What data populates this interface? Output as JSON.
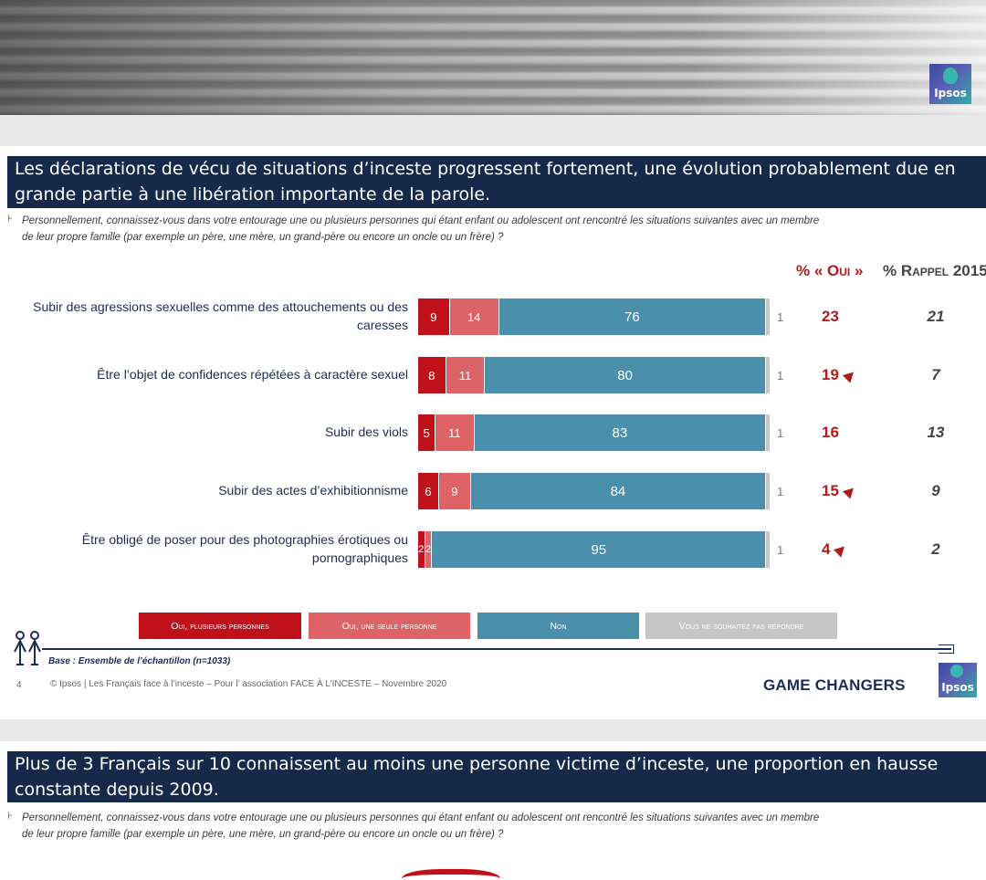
{
  "slide1": {
    "title": "Les déclarations de vécu de situations d’inceste progressent fortement, une évolution probablement due en grande partie à une libération importante de la parole.",
    "question_line1": "Personnellement, connaissez-vous dans votre entourage une ou plusieurs personnes qui étant enfant ou adolescent ont rencontré les situations suivantes avec un membre",
    "question_line2": "de leur propre famille (par exemple un père, une mère, un grand-père ou encore un oncle ou un frère) ?",
    "col_oui": "% « Oui »",
    "col_rappel": "% Rappel 2015",
    "base": "Base : Ensemble de l’échantillon (n=1033)",
    "footer": "© Ipsos | Les Français face à l’inceste – Pour l’ association FACE À L’INCESTE – Novembre 2020",
    "page_number": "4",
    "brand": "GAME CHANGERS",
    "logo_text": "Ipsos"
  },
  "chart_data": {
    "type": "bar",
    "orientation": "horizontal-stacked-100",
    "categories": [
      "Subir des agressions sexuelles comme des attouchements ou des caresses",
      "Être l’objet de confidences répétées à caractère sexuel",
      "Subir des viols",
      "Subir des actes d’exhibitionnisme",
      "Être obligé de poser pour des photographies érotiques ou pornographiques"
    ],
    "label_lines": [
      [
        "Subir des agressions sexuelles comme des attouchements ou des",
        "caresses"
      ],
      [
        "Être l’objet de confidences répétées à caractère sexuel"
      ],
      [
        "Subir des viols"
      ],
      [
        "Subir des actes d’exhibitionnisme"
      ],
      [
        "Être obligé de poser pour des photographies érotiques ou",
        "pornographiques"
      ]
    ],
    "series": [
      {
        "name": "Oui, plusieurs personnes",
        "color": "#c0111b",
        "values": [
          9,
          8,
          5,
          6,
          2
        ]
      },
      {
        "name": "Oui, une seule personne",
        "color": "#dd6366",
        "values": [
          14,
          11,
          11,
          9,
          2
        ]
      },
      {
        "name": "Non",
        "color": "#4a8fab",
        "values": [
          76,
          80,
          83,
          84,
          95
        ]
      },
      {
        "name": "Vous ne souhaitez pas répondre",
        "color": "#c6c6c6",
        "values": [
          1,
          1,
          1,
          1,
          1
        ]
      }
    ],
    "oui_total": [
      "23",
      "19",
      "16",
      "15",
      "4"
    ],
    "oui_trend_up": [
      false,
      true,
      false,
      true,
      true
    ],
    "rappel_2015": [
      "21",
      "7",
      "13",
      "9",
      "2"
    ],
    "xlim": [
      0,
      100
    ],
    "legend": [
      "Oui, plusieurs personnes",
      "Oui, une seule personne",
      "Non",
      "Vous ne souhaitez pas répondre"
    ],
    "legend_placement": "bottom"
  },
  "slide2": {
    "title": "Plus de 3 Français sur 10 connaissent au moins une personne victime d’inceste, une proportion en hausse constante depuis 2009.",
    "question_line1": "Personnellement, connaissez-vous dans votre entourage une ou plusieurs personnes qui étant enfant ou adolescent ont rencontré les situations suivantes avec un membre",
    "question_line2": "de leur propre famille (par exemple un père, une mère, un grand-père ou encore un oncle ou un frère) ?"
  }
}
